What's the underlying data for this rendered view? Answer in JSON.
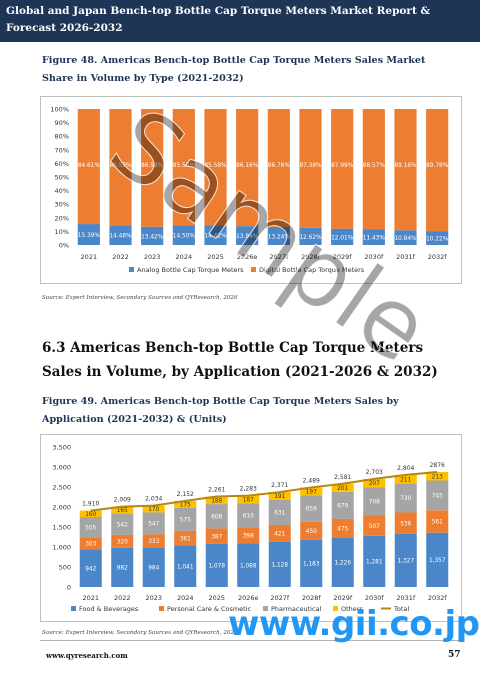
{
  "header": {
    "title": "Global and Japan Bench-top Bottle Cap Torque Meters Market Report & Forecast 2026-2032"
  },
  "figure48": {
    "title": "Figure 48.   Americas Bench-top Bottle Cap Torque Meters Sales Market Share in Volume by Type (2021-2032)",
    "source": "Source: Expert Interview, Secondary Sources and QYResearch, 2026"
  },
  "section": {
    "title": "6.3  Americas Bench-top Bottle Cap Torque Meters Sales in Volume, by Application (2021-2026 & 2032)"
  },
  "figure49": {
    "title": "Figure 49.   Americas Bench-top Bottle Cap Torque Meters Sales by Application (2021-2032) & (Units)",
    "source": "Source: Expert Interview, Secondary Sources and QYResearch, 2026"
  },
  "footer": {
    "url": "www.qyresearch.com",
    "page": "57"
  },
  "watermarks": {
    "sample": "Sample",
    "gii": "www.gii.co.jp"
  },
  "colors": {
    "header": "#1f3556",
    "blue": "#4a86c8",
    "orange": "#ed7d31",
    "gray": "#a5a5a5",
    "yellow": "#ffc000",
    "gold": "#b8860b"
  },
  "chart_data": [
    {
      "type": "bar",
      "stacked": "percent",
      "categories": [
        "2021",
        "2022",
        "2023",
        "2024",
        "2025",
        "2026e",
        "2027f",
        "2028f",
        "2029f",
        "2030f",
        "2031f",
        "2032f"
      ],
      "series": [
        {
          "name": "Analog Bottle Cap Torque Meters",
          "values": [
            15.39,
            14.48,
            13.42,
            14.5,
            14.42,
            13.84,
            13.24,
            12.62,
            12.01,
            11.43,
            10.84,
            10.22
          ],
          "labels": [
            "15.39%",
            "14.48%",
            "13.42%",
            "14.50%",
            "14.42%",
            "13.84%",
            "13.24%",
            "12.62%",
            "12.01%",
            "11.43%",
            "10.84%",
            "10.22%"
          ]
        },
        {
          "name": "Digital Bottle Cap Torque Meters",
          "values": [
            84.61,
            85.52,
            86.58,
            85.5,
            85.58,
            86.16,
            86.76,
            87.38,
            87.99,
            88.57,
            89.16,
            89.78
          ],
          "labels": [
            "84.61%",
            "85.52%",
            "86.58%",
            "85.50%",
            "85.58%",
            "86.16%",
            "86.76%",
            "87.38%",
            "87.99%",
            "88.57%",
            "89.16%",
            "89.78%"
          ]
        }
      ],
      "yticks": [
        "0%",
        "10%",
        "20%",
        "30%",
        "40%",
        "50%",
        "60%",
        "70%",
        "80%",
        "90%",
        "100%"
      ],
      "ylim": [
        0,
        100
      ],
      "legend": "bottom",
      "grid": false
    },
    {
      "type": "bar",
      "stacked": true,
      "categories": [
        "2021",
        "2022",
        "2023",
        "2024",
        "2025",
        "2026e",
        "2027f",
        "2028f",
        "2029f",
        "2030f",
        "2031f",
        "2032f"
      ],
      "series": [
        {
          "name": "Food & Beverages",
          "values": [
            942,
            982,
            984,
            1041,
            1078,
            1088,
            1128,
            1183,
            1226,
            1281,
            1327,
            1357
          ],
          "labels": [
            "942",
            "982",
            "984",
            "1,041",
            "1,078",
            "1,088",
            "1,128",
            "1,183",
            "1,226",
            "1,281",
            "1,327",
            "1,357"
          ]
        },
        {
          "name": "Personal Care & Cosmetic",
          "values": [
            303,
            320,
            333,
            361,
            387,
            398,
            421,
            450,
            475,
            507,
            536,
            561
          ],
          "labels": [
            "303",
            "320",
            "333",
            "361",
            "387",
            "398",
            "421",
            "450",
            "475",
            "507",
            "536",
            "561"
          ]
        },
        {
          "name": "Pharmaceutical",
          "values": [
            505,
            542,
            547,
            575,
            608,
            610,
            631,
            659,
            679,
            708,
            730,
            745
          ],
          "labels": [
            "505",
            "542",
            "547",
            "575",
            "608",
            "610",
            "631",
            "659",
            "679",
            "708",
            "730",
            "745"
          ]
        },
        {
          "name": "Others",
          "values": [
            160,
            165,
            170,
            175,
            188,
            187,
            191,
            197,
            201,
            207,
            211,
            213
          ],
          "labels": [
            "160",
            "165",
            "170",
            "175",
            "188",
            "187",
            "191",
            "197",
            "201",
            "207",
            "211",
            "213"
          ]
        }
      ],
      "total": {
        "name": "Total",
        "values": [
          1910,
          2009,
          2034,
          2152,
          2261,
          2283,
          2371,
          2489,
          2581,
          2703,
          2804,
          2876
        ],
        "labels": [
          "1,910",
          "2,009",
          "2,034",
          "2,152",
          "2,261",
          "2,283",
          "2,371",
          "2,489",
          "2,581",
          "2,703",
          "2,804",
          "2876"
        ]
      },
      "yticks": [
        "0",
        "500",
        "1,000",
        "1,500",
        "2,000",
        "2,500",
        "3,000",
        "3,500"
      ],
      "ylim": [
        0,
        3500
      ],
      "legend": "bottom",
      "grid": false
    }
  ]
}
